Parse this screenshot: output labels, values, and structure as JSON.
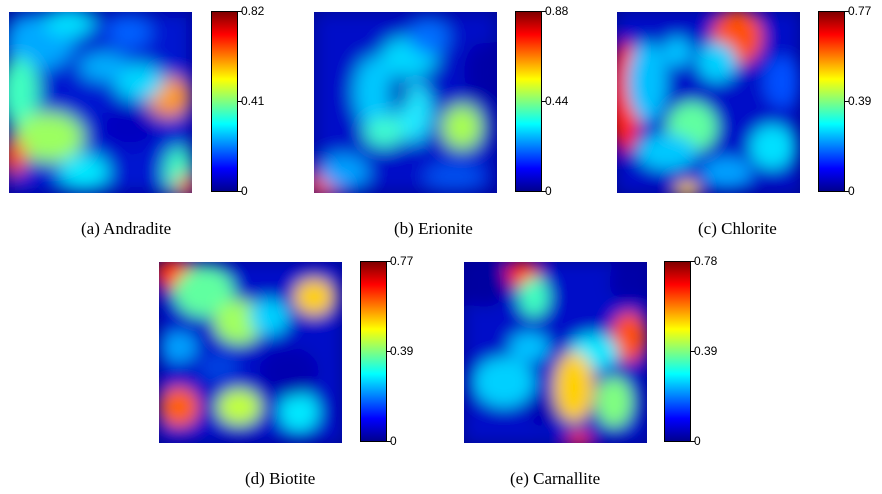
{
  "figure": {
    "panels": [
      {
        "caption": "(a) Andradite",
        "colorbar": {
          "max": "0.82",
          "mid": "0.41",
          "min": "0"
        }
      },
      {
        "caption": "(b) Erionite",
        "colorbar": {
          "max": "0.88",
          "mid": "0.44",
          "min": "0"
        }
      },
      {
        "caption": "(c) Chlorite",
        "colorbar": {
          "max": "0.77",
          "mid": "0.39",
          "min": "0"
        }
      },
      {
        "caption": "(d) Biotite",
        "colorbar": {
          "max": "0.77",
          "mid": "0.39",
          "min": "0"
        }
      },
      {
        "caption": "(e) Carnallite",
        "colorbar": {
          "max": "0.78",
          "mid": "0.39",
          "min": "0"
        }
      }
    ],
    "colormap": [
      "#00008f",
      "#0000ff",
      "#00ffff",
      "#ffff00",
      "#ff0000",
      "#800000"
    ]
  },
  "chart_data": [
    {
      "type": "heatmap",
      "title": "(a) Andradite",
      "zlim": [
        0,
        0.82
      ],
      "colorbar_ticks": [
        0,
        0.41,
        0.82
      ],
      "colormap": "jet"
    },
    {
      "type": "heatmap",
      "title": "(b) Erionite",
      "zlim": [
        0,
        0.88
      ],
      "colorbar_ticks": [
        0,
        0.44,
        0.88
      ],
      "colormap": "jet"
    },
    {
      "type": "heatmap",
      "title": "(c) Chlorite",
      "zlim": [
        0,
        0.77
      ],
      "colorbar_ticks": [
        0,
        0.39,
        0.77
      ],
      "colormap": "jet"
    },
    {
      "type": "heatmap",
      "title": "(d) Biotite",
      "zlim": [
        0,
        0.77
      ],
      "colorbar_ticks": [
        0,
        0.39,
        0.77
      ],
      "colormap": "jet"
    },
    {
      "type": "heatmap",
      "title": "(e) Carnallite",
      "zlim": [
        0,
        0.78
      ],
      "colorbar_ticks": [
        0,
        0.39,
        0.78
      ],
      "colormap": "jet"
    }
  ]
}
